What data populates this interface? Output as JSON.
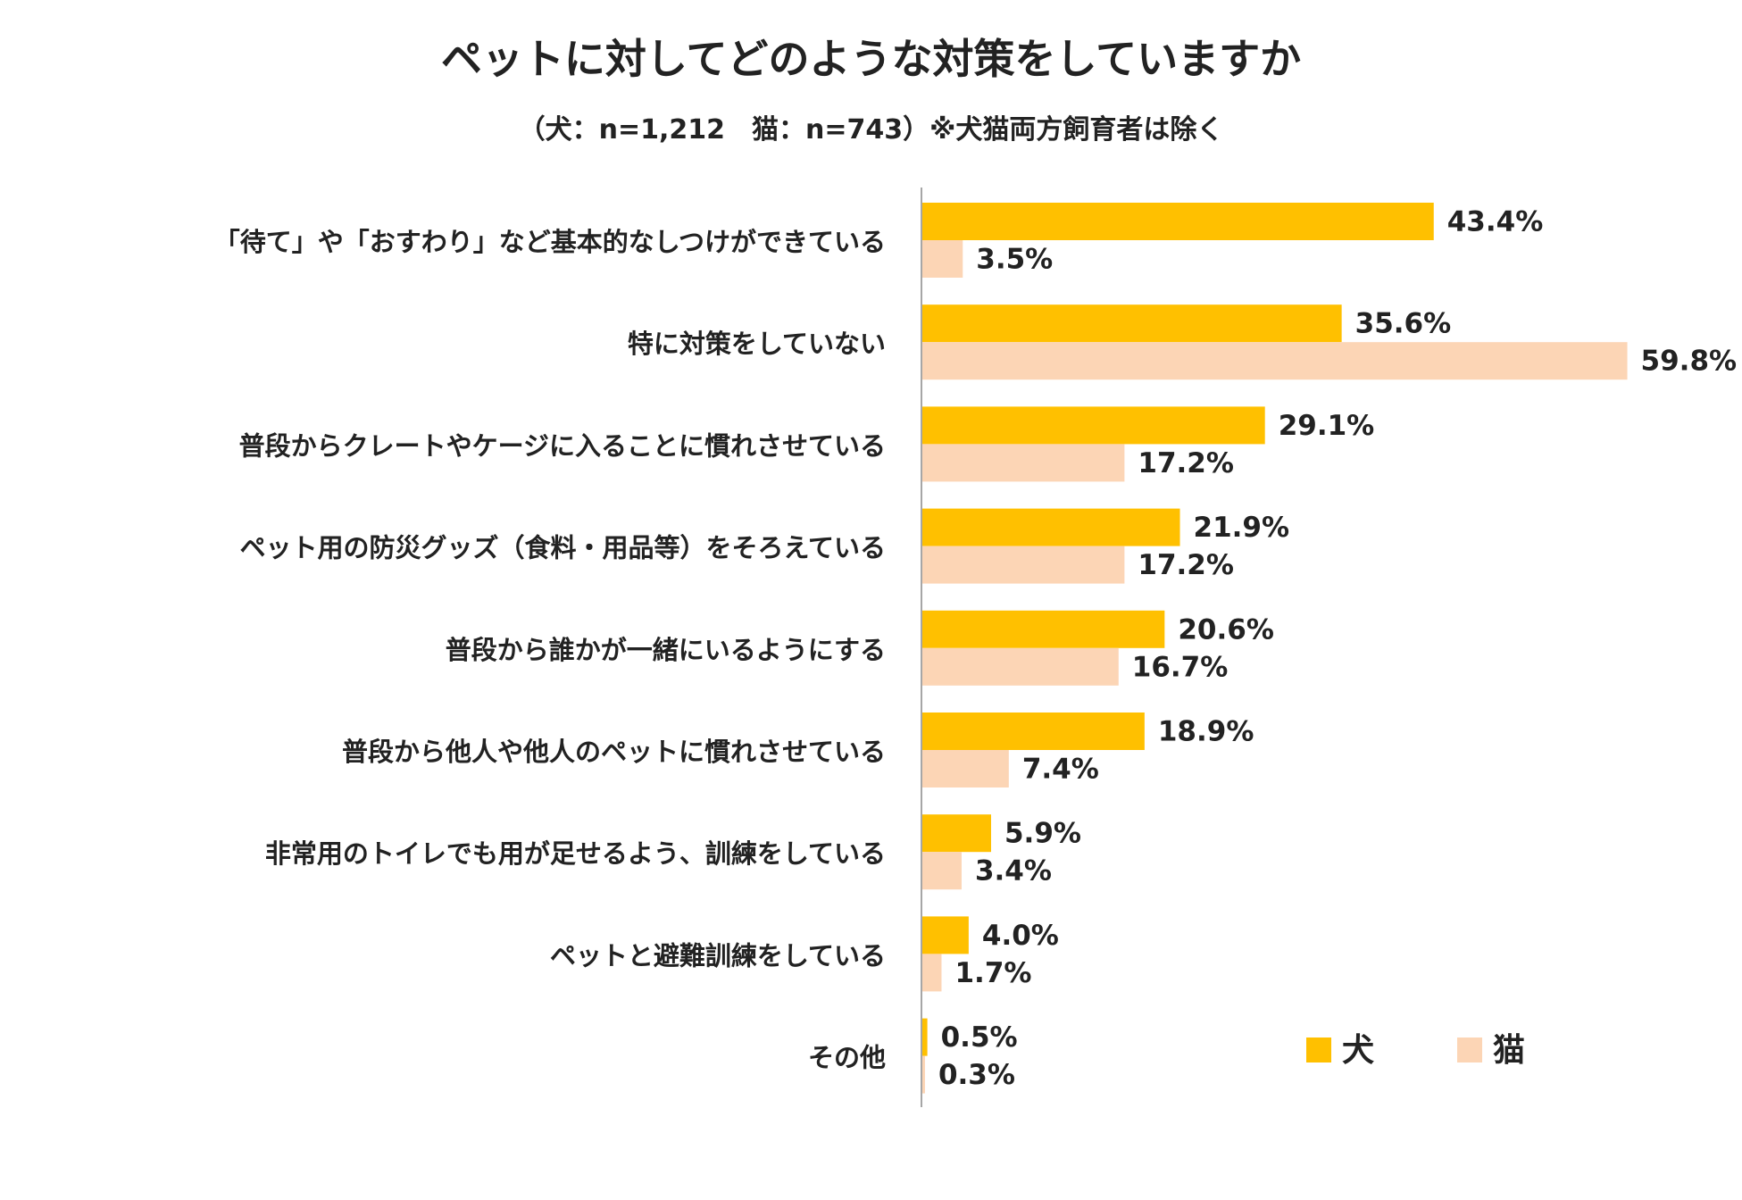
{
  "title": "ペットに対してどのような対策をしていますか",
  "subtitle": "（犬：n=1,212　猫：n=743）※犬猫両方飼育者は除く",
  "colors": {
    "dog": "#FFC000",
    "cat": "#FCD5B5",
    "axis": "#A6A6A6"
  },
  "chart_data": {
    "type": "bar",
    "orientation": "horizontal",
    "categories": [
      "「待て」や「おすわり」など基本的なしつけができている",
      "特に対策をしていない",
      "普段からクレートやケージに入ることに慣れさせている",
      "ペット用の防災グッズ（食料・用品等）をそろえている",
      "普段から誰かが一緒にいるようにする",
      "普段から他人や他人のペットに慣れさせている",
      "非常用のトイレでも用が足せるよう、訓練をしている",
      "ペットと避難訓練をしている",
      "その他"
    ],
    "series": [
      {
        "name": "犬",
        "values": [
          43.4,
          35.6,
          29.1,
          21.9,
          20.6,
          18.9,
          5.9,
          4.0,
          0.5
        ],
        "labels": [
          "43.4%",
          "35.6%",
          "29.1%",
          "21.9%",
          "20.6%",
          "18.9%",
          "5.9%",
          "4.0%",
          "0.5%"
        ]
      },
      {
        "name": "猫",
        "values": [
          3.5,
          59.8,
          17.2,
          17.2,
          16.7,
          7.4,
          3.4,
          1.7,
          0.3
        ],
        "labels": [
          "3.5%",
          "59.8%",
          "17.2%",
          "17.2%",
          "16.7%",
          "7.4%",
          "3.4%",
          "1.7%",
          "0.3%"
        ]
      }
    ],
    "unit": "%",
    "legend_position": "bottom-right",
    "grid": false
  }
}
